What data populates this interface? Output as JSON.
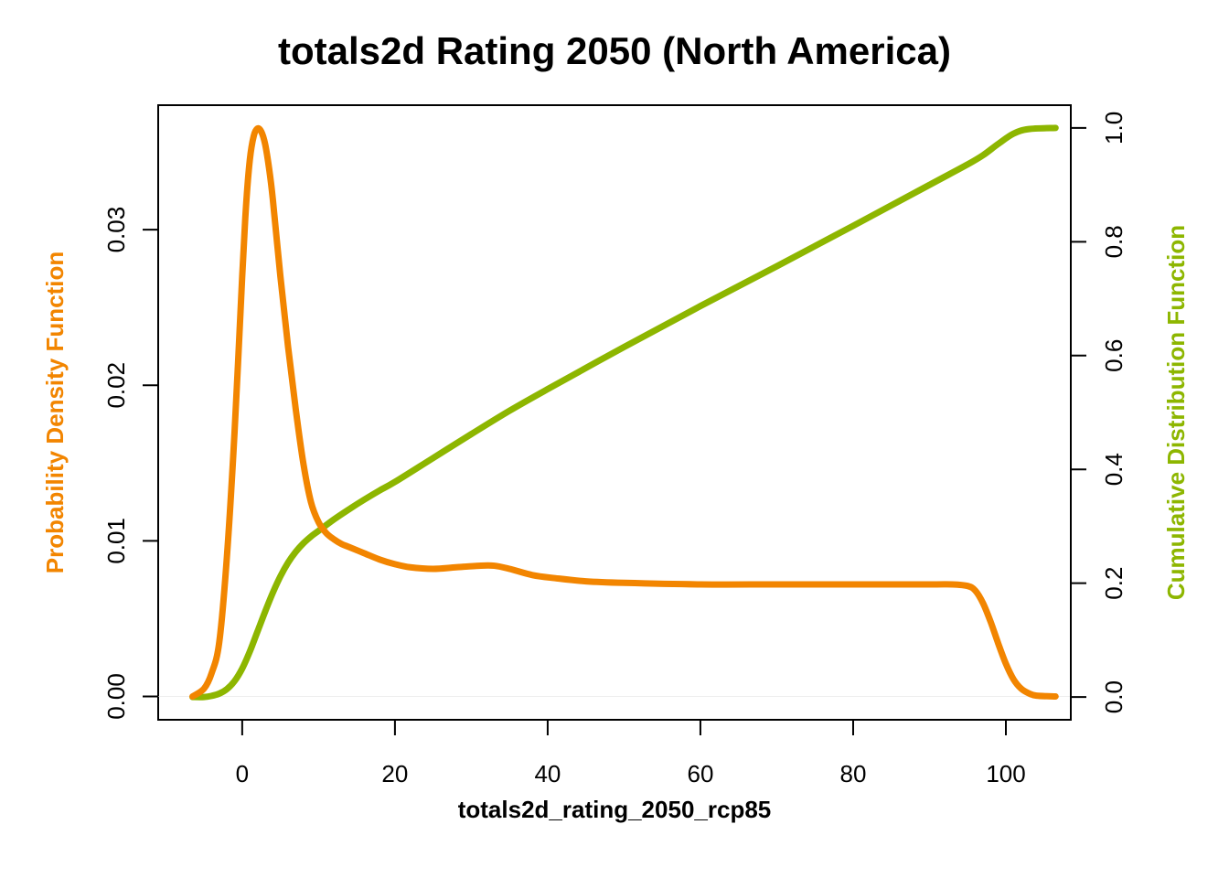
{
  "chart_data": {
    "type": "line",
    "title": "totals2d Rating 2050 (North America)",
    "xlabel": "totals2d_rating_2050_rcp85",
    "ylabel_left": "Probability Density Function",
    "ylabel_right": "Cumulative Distribution Function",
    "xlim": [
      -11,
      108.5
    ],
    "ylim_left": [
      -0.0015,
      0.038
    ],
    "ylim_right": [
      -0.04,
      1.04
    ],
    "x_ticks": [
      0,
      20,
      40,
      60,
      80,
      100
    ],
    "y_left_ticks": [
      0.0,
      0.01,
      0.02,
      0.03
    ],
    "y_right_ticks": [
      0.0,
      0.2,
      0.4,
      0.6,
      0.8,
      1.0
    ],
    "grid": false,
    "colors": {
      "pdf": "#F28500",
      "cdf": "#8DB600"
    },
    "series": [
      {
        "name": "Probability Density Function",
        "axis": "left",
        "x": [
          -6.5,
          -5,
          -4,
          -3,
          -2,
          -1,
          0,
          0.5,
          1,
          1.5,
          2,
          2.5,
          3,
          3.5,
          4,
          5,
          6,
          7,
          8,
          9,
          10,
          11,
          12,
          13,
          14,
          16,
          18,
          20,
          22,
          25,
          28,
          31,
          33,
          35,
          38,
          41,
          45,
          50,
          60,
          70,
          80,
          90,
          93,
          95,
          96,
          97,
          98,
          99,
          100,
          101,
          102,
          103,
          104,
          106.5
        ],
        "y": [
          0.0,
          0.0005,
          0.0015,
          0.0035,
          0.009,
          0.017,
          0.027,
          0.0315,
          0.0345,
          0.036,
          0.0365,
          0.0363,
          0.0355,
          0.034,
          0.032,
          0.027,
          0.0225,
          0.0185,
          0.015,
          0.0125,
          0.0112,
          0.0105,
          0.0101,
          0.0098,
          0.0096,
          0.0092,
          0.0088,
          0.0085,
          0.0083,
          0.0082,
          0.0083,
          0.0084,
          0.0084,
          0.0082,
          0.0078,
          0.0076,
          0.0074,
          0.0073,
          0.0072,
          0.0072,
          0.0072,
          0.0072,
          0.0072,
          0.0071,
          0.0068,
          0.006,
          0.0048,
          0.0034,
          0.0021,
          0.0011,
          0.0005,
          0.0002,
          5e-05,
          0.0
        ]
      },
      {
        "name": "Cumulative Distribution Function",
        "axis": "right",
        "x": [
          -6.5,
          -5,
          -4,
          -3,
          -2,
          -1,
          0,
          1,
          2,
          3,
          4,
          5,
          6,
          7,
          8,
          9,
          10,
          12,
          14,
          16,
          18,
          20,
          25,
          30,
          35,
          40,
          50,
          60,
          70,
          80,
          90,
          95,
          97,
          99,
          101,
          103,
          106.5
        ],
        "y": [
          0.0,
          0.0,
          0.002,
          0.006,
          0.014,
          0.028,
          0.05,
          0.08,
          0.115,
          0.15,
          0.183,
          0.212,
          0.236,
          0.255,
          0.27,
          0.282,
          0.292,
          0.312,
          0.33,
          0.347,
          0.363,
          0.378,
          0.42,
          0.462,
          0.503,
          0.541,
          0.615,
          0.687,
          0.757,
          0.828,
          0.9,
          0.936,
          0.952,
          0.972,
          0.99,
          0.998,
          1.0
        ]
      }
    ]
  }
}
